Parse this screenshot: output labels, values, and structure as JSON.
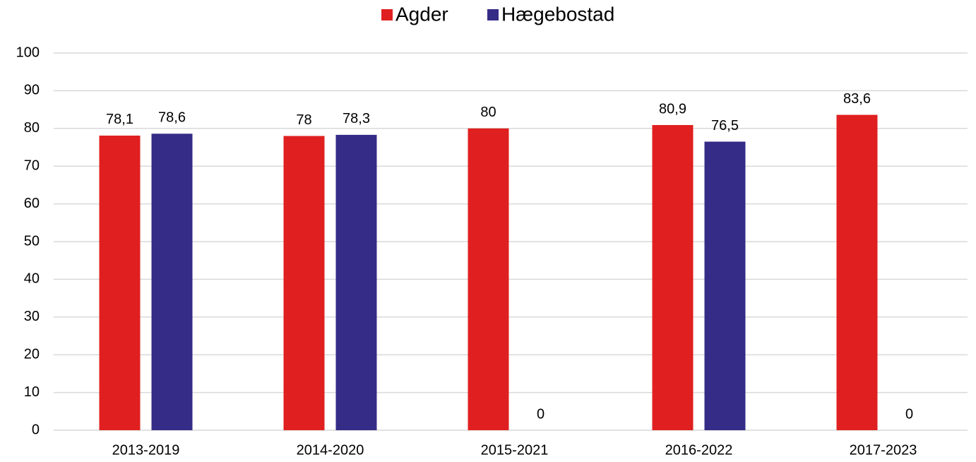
{
  "chart_data": {
    "type": "bar",
    "categories": [
      "2013-2019",
      "2014-2020",
      "2015-2021",
      "2016-2022",
      "2017-2023"
    ],
    "series": [
      {
        "name": "Agder",
        "color": "#e02020",
        "values": [
          78.1,
          78,
          80,
          80.9,
          83.6
        ],
        "value_labels": [
          "78,1",
          "78",
          "80",
          "80,9",
          "83,6"
        ]
      },
      {
        "name": "Hægebostad",
        "color": "#352c87",
        "values": [
          78.6,
          78.3,
          0,
          76.5,
          0
        ],
        "value_labels": [
          "78,6",
          "78,3",
          "0",
          "76,5",
          "0"
        ]
      }
    ],
    "ylim": [
      0,
      100
    ],
    "yticks": [
      0,
      10,
      20,
      30,
      40,
      50,
      60,
      70,
      80,
      90,
      100
    ],
    "grid": true,
    "legend": "top"
  }
}
